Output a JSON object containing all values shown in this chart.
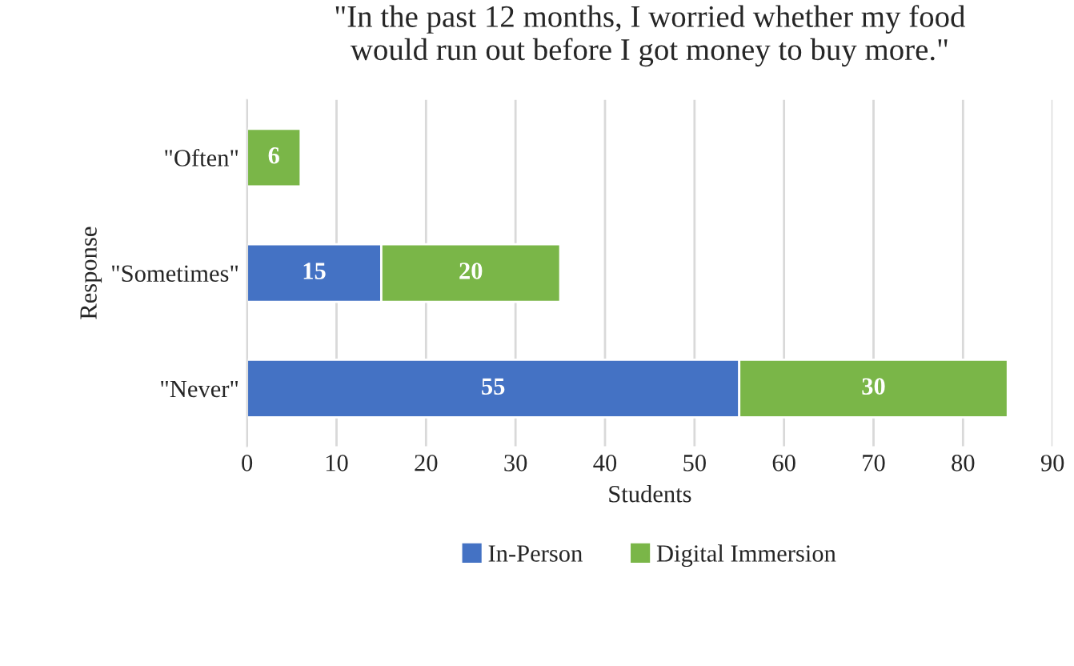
{
  "chart_data": {
    "type": "bar",
    "orientation": "horizontal",
    "stacked": true,
    "title": "\"In the past 12 months, I worried whether my food\nwould run out before I got money to buy more.\"",
    "xlabel": "Students",
    "ylabel": "Response",
    "categories": [
      "\"Often\"",
      "\"Sometimes\"",
      "\"Never\""
    ],
    "series": [
      {
        "name": "In-Person",
        "color": "#4472c4",
        "values": [
          null,
          15,
          55
        ]
      },
      {
        "name": "Digital Immersion",
        "color": "#7ab648",
        "values": [
          6,
          20,
          30
        ]
      }
    ],
    "xlim": [
      0,
      90
    ],
    "xticks": [
      0,
      10,
      20,
      30,
      40,
      50,
      60,
      70,
      80,
      90
    ],
    "grid": "x",
    "legend": "bottom",
    "data_labels": true
  }
}
